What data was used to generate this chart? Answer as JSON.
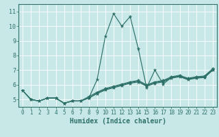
{
  "xlabel": "Humidex (Indice chaleur)",
  "xlim": [
    -0.5,
    23.5
  ],
  "ylim": [
    4.5,
    11.5
  ],
  "yticks": [
    5,
    6,
    7,
    8,
    9,
    10,
    11
  ],
  "xticks": [
    0,
    1,
    2,
    3,
    4,
    5,
    6,
    7,
    8,
    9,
    10,
    11,
    12,
    13,
    14,
    15,
    16,
    17,
    18,
    19,
    20,
    21,
    22,
    23
  ],
  "background_color": "#c8e8e8",
  "line_color": "#2d7068",
  "grid_color": "#ffffff",
  "lines": [
    {
      "x": [
        0,
        1,
        2,
        3,
        4,
        5,
        6,
        7,
        8,
        9,
        10,
        11,
        12,
        13,
        14,
        15,
        16,
        17,
        18,
        19,
        20,
        21,
        22,
        23
      ],
      "y": [
        5.6,
        5.0,
        4.9,
        5.1,
        5.1,
        4.75,
        4.9,
        4.9,
        5.1,
        6.35,
        9.3,
        10.85,
        10.0,
        10.65,
        8.45,
        5.8,
        7.0,
        6.05,
        6.5,
        6.6,
        6.4,
        6.5,
        6.5,
        7.0
      ]
    },
    {
      "x": [
        0,
        1,
        2,
        3,
        4,
        5,
        6,
        7,
        8,
        9,
        10,
        11,
        12,
        13,
        14,
        15,
        16,
        17,
        18,
        19,
        20,
        21,
        22,
        23
      ],
      "y": [
        5.6,
        5.0,
        4.9,
        5.1,
        5.1,
        4.75,
        4.9,
        4.9,
        5.1,
        5.4,
        5.65,
        5.8,
        5.95,
        6.1,
        6.2,
        5.9,
        6.1,
        6.2,
        6.45,
        6.55,
        6.35,
        6.45,
        6.5,
        7.0
      ]
    },
    {
      "x": [
        0,
        1,
        2,
        3,
        4,
        5,
        6,
        7,
        8,
        9,
        10,
        11,
        12,
        13,
        14,
        15,
        16,
        17,
        18,
        19,
        20,
        21,
        22,
        23
      ],
      "y": [
        5.6,
        5.0,
        4.9,
        5.1,
        5.1,
        4.75,
        4.9,
        4.9,
        5.1,
        5.45,
        5.7,
        5.85,
        6.0,
        6.15,
        6.25,
        5.95,
        6.15,
        6.25,
        6.5,
        6.6,
        6.4,
        6.5,
        6.55,
        7.05
      ]
    },
    {
      "x": [
        0,
        1,
        2,
        3,
        4,
        5,
        6,
        7,
        8,
        9,
        10,
        11,
        12,
        13,
        14,
        15,
        16,
        17,
        18,
        19,
        20,
        21,
        22,
        23
      ],
      "y": [
        5.6,
        5.0,
        4.9,
        5.1,
        5.1,
        4.75,
        4.9,
        4.9,
        5.2,
        5.5,
        5.75,
        5.9,
        6.05,
        6.2,
        6.3,
        6.0,
        6.2,
        6.3,
        6.55,
        6.65,
        6.45,
        6.55,
        6.6,
        7.1
      ]
    }
  ]
}
